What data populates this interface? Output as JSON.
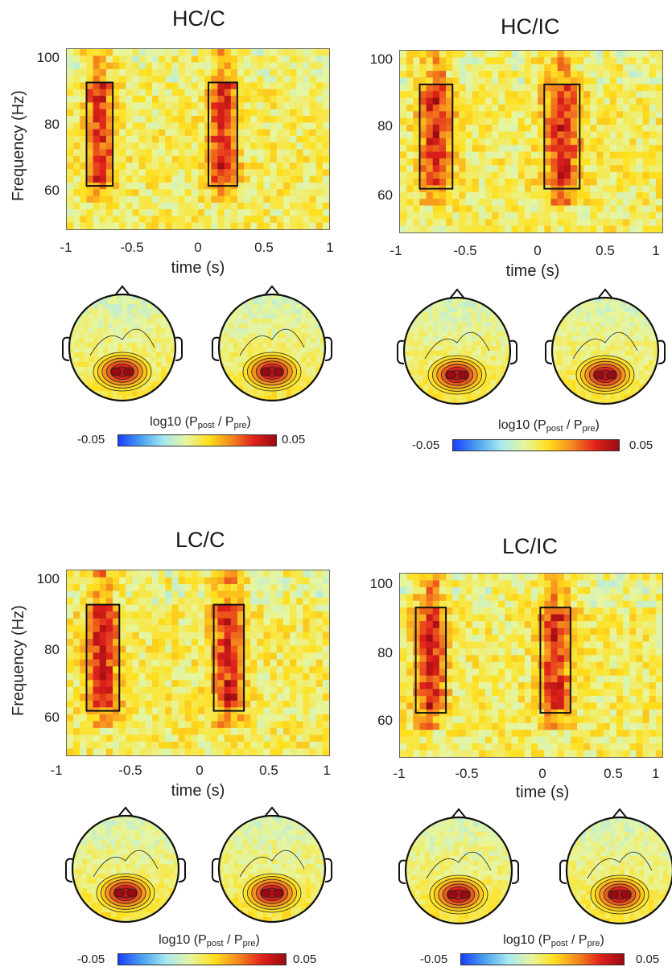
{
  "colors": {
    "colormap": [
      "#1a3dff",
      "#4aa0f0",
      "#a6e8f2",
      "#e6f5a0",
      "#ffe01e",
      "#f58a1e",
      "#e0221c",
      "#9a0a12"
    ]
  },
  "colorbar": {
    "label_prefix": "log10 (P",
    "sub_post": "post",
    "sep": " / P",
    "sub_pre": "pre",
    "label_suffix": ")",
    "min_label": "-0.05",
    "max_label": "0.05"
  },
  "chart_data": [
    {
      "type": "heatmap",
      "title": "HC/C",
      "xlabel": "time (s)",
      "ylabel": "Frequency (Hz)",
      "xlim": [
        -1,
        1
      ],
      "ylim": [
        48,
        102
      ],
      "xticks": [
        "-1",
        "-0.5",
        "0",
        "0.5",
        "1"
      ],
      "yticks": [
        "60",
        "80",
        "100"
      ],
      "clim": [
        -0.05,
        0.05
      ],
      "roi_boxes": [
        {
          "t": [
            -0.85,
            -0.65
          ],
          "f": [
            61,
            92
          ]
        },
        {
          "t": [
            0.08,
            0.3
          ],
          "f": [
            61,
            92
          ]
        }
      ],
      "topomaps": [
        "early window",
        "late window"
      ]
    },
    {
      "type": "heatmap",
      "title": "HC/IC",
      "xlabel": "time (s)",
      "ylabel": "",
      "xlim": [
        -1,
        1
      ],
      "ylim": [
        48,
        102
      ],
      "xticks": [
        "-1",
        "-0.5",
        "0",
        "0.5",
        "1"
      ],
      "yticks": [
        "60",
        "80",
        "100"
      ],
      "clim": [
        -0.05,
        0.05
      ],
      "roi_boxes": [
        {
          "t": [
            -0.85,
            -0.6
          ],
          "f": [
            61,
            92
          ]
        },
        {
          "t": [
            0.1,
            0.37
          ],
          "f": [
            61,
            92
          ]
        }
      ],
      "topomaps": [
        "early window",
        "late window"
      ]
    },
    {
      "type": "heatmap",
      "title": "LC/C",
      "xlabel": "time (s)",
      "ylabel": "Frequency (Hz)",
      "xlim": [
        -1,
        1
      ],
      "ylim": [
        48,
        102
      ],
      "xticks": [
        "-1",
        "-0.5",
        "0",
        "0.5",
        "1"
      ],
      "yticks": [
        "60",
        "80",
        "100"
      ],
      "clim": [
        -0.05,
        0.05
      ],
      "roi_boxes": [
        {
          "t": [
            -0.85,
            -0.6
          ],
          "f": [
            61,
            92
          ]
        },
        {
          "t": [
            0.12,
            0.35
          ],
          "f": [
            61,
            92
          ]
        }
      ],
      "topomaps": [
        "early window",
        "late window"
      ]
    },
    {
      "type": "heatmap",
      "title": "LC/IC",
      "xlabel": "time (s)",
      "ylabel": "",
      "xlim": [
        -1,
        1
      ],
      "ylim": [
        48,
        102
      ],
      "xticks": [
        "-1",
        "-0.5",
        "0",
        "0.5",
        "1"
      ],
      "yticks": [
        "60",
        "80",
        "100"
      ],
      "clim": [
        -0.05,
        0.05
      ],
      "roi_boxes": [
        {
          "t": [
            -0.88,
            -0.65
          ],
          "f": [
            61,
            92
          ]
        },
        {
          "t": [
            0.07,
            0.3
          ],
          "f": [
            61,
            92
          ]
        }
      ],
      "topomaps": [
        "early window",
        "late window"
      ]
    }
  ]
}
